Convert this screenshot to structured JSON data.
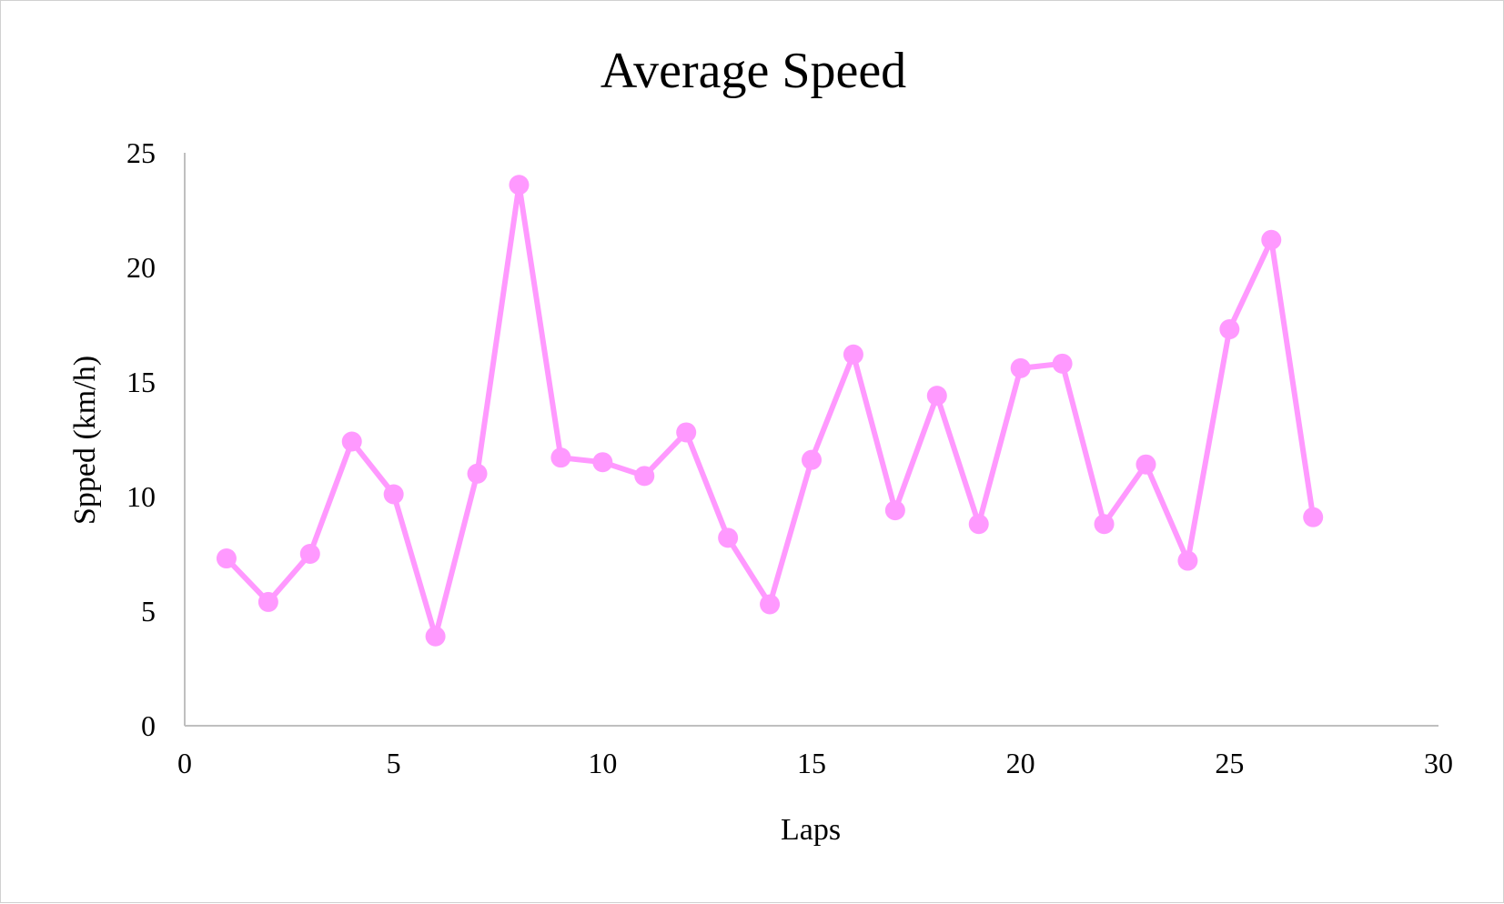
{
  "chart_data": {
    "type": "line",
    "title": "Average Speed",
    "xlabel": "Laps",
    "ylabel": "Spped  (km/h)",
    "xlim": [
      0,
      30
    ],
    "ylim": [
      0,
      25
    ],
    "x_ticks": [
      "0",
      "5",
      "10",
      "15",
      "20",
      "25",
      "30"
    ],
    "y_ticks": [
      "0",
      "5",
      "10",
      "15",
      "20",
      "25"
    ],
    "grid": false,
    "legend": "none",
    "series": [
      {
        "color": "#ff99ff",
        "marker": "circle",
        "points": [
          {
            "x": 1,
            "y": 7.3
          },
          {
            "x": 2,
            "y": 5.4
          },
          {
            "x": 3,
            "y": 7.5
          },
          {
            "x": 4,
            "y": 12.4
          },
          {
            "x": 5,
            "y": 10.1
          },
          {
            "x": 6,
            "y": 3.9
          },
          {
            "x": 7,
            "y": 11.0
          },
          {
            "x": 8,
            "y": 23.6
          },
          {
            "x": 9,
            "y": 11.7
          },
          {
            "x": 10,
            "y": 11.5
          },
          {
            "x": 11,
            "y": 10.9
          },
          {
            "x": 12,
            "y": 12.8
          },
          {
            "x": 13,
            "y": 8.2
          },
          {
            "x": 14,
            "y": 5.3
          },
          {
            "x": 15,
            "y": 11.6
          },
          {
            "x": 16,
            "y": 16.2
          },
          {
            "x": 17,
            "y": 9.4
          },
          {
            "x": 18,
            "y": 14.4
          },
          {
            "x": 19,
            "y": 8.8
          },
          {
            "x": 20,
            "y": 15.6
          },
          {
            "x": 21,
            "y": 15.8
          },
          {
            "x": 22,
            "y": 8.8
          },
          {
            "x": 23,
            "y": 11.4
          },
          {
            "x": 24,
            "y": 7.2
          },
          {
            "x": 25,
            "y": 17.3
          },
          {
            "x": 26,
            "y": 21.2
          },
          {
            "x": 27,
            "y": 9.1
          }
        ]
      }
    ]
  }
}
